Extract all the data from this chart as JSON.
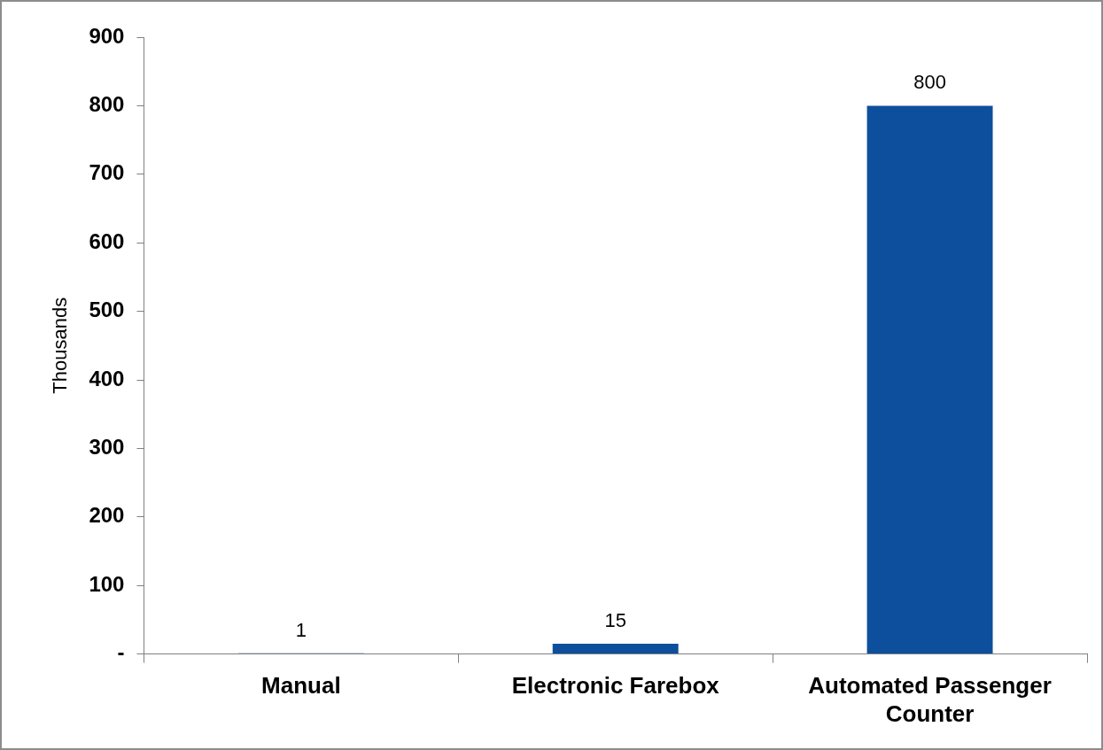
{
  "chart_data": {
    "type": "bar",
    "ylabel": "Thousands",
    "categories": [
      "Manual",
      "Electronic Farebox",
      "Automated Passenger Counter"
    ],
    "values": [
      1,
      15,
      800
    ],
    "color": "#0d4f9c",
    "ylim": [
      0,
      900
    ],
    "yticks": [
      {
        "value": 0,
        "label": "-"
      },
      100,
      200,
      300,
      400,
      500,
      600,
      700,
      800,
      900
    ],
    "data_labels": true,
    "grid": false,
    "legend": false
  }
}
